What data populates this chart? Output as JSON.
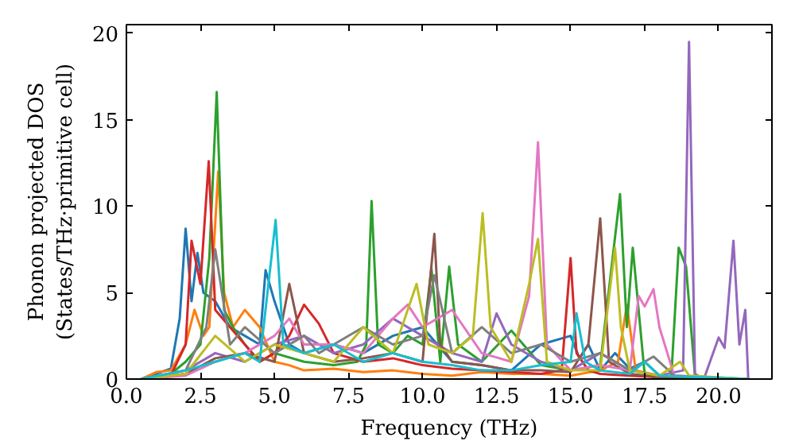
{
  "chart_data": {
    "type": "line",
    "xlabel": "Frequency (THz)",
    "ylabel": "Phonon projected DOS\n(States/THz·primitive cell)",
    "xlim": [
      0,
      21.8
    ],
    "ylim": [
      0,
      20.5
    ],
    "xticks": [
      {
        "value": 0,
        "label": "0.0"
      },
      {
        "value": 2.5,
        "label": "2.5"
      },
      {
        "value": 5,
        "label": "5.0"
      },
      {
        "value": 7.5,
        "label": "7.5"
      },
      {
        "value": 10,
        "label": "10.0"
      },
      {
        "value": 12.5,
        "label": "12.5"
      },
      {
        "value": 15,
        "label": "15.0"
      },
      {
        "value": 17.5,
        "label": "17.5"
      },
      {
        "value": 20,
        "label": "20.0"
      }
    ],
    "yticks": [
      0,
      5,
      10,
      15,
      20
    ],
    "grid": false,
    "line_style": "solid",
    "series": [
      {
        "color": "#1f77b4",
        "x": [
          0.5,
          1.0,
          1.5,
          1.8,
          2.0,
          2.2,
          2.4,
          2.6,
          3.0,
          3.5,
          4.0,
          4.5,
          4.7,
          5.0,
          5.5,
          6.0,
          7.0,
          8.0,
          9.0,
          10.0,
          10.5,
          11.0,
          12.0,
          13.0,
          14.0,
          15.0,
          15.3,
          15.6,
          16.0,
          16.5,
          17.0,
          17.5,
          18.0,
          19.0,
          21.0
        ],
        "values": [
          0,
          0.3,
          0.6,
          3.5,
          8.7,
          4.5,
          7.3,
          5.0,
          4.5,
          3.0,
          2.5,
          2.0,
          6.3,
          4.5,
          2.0,
          1.5,
          2.0,
          1.5,
          2.5,
          3.0,
          2.0,
          1.0,
          0.8,
          0.5,
          2.0,
          2.5,
          1.2,
          2.0,
          0.5,
          1.5,
          0.6,
          1.0,
          0.2,
          0,
          0
        ]
      },
      {
        "color": "#ff7f0e",
        "x": [
          0.5,
          1.0,
          1.5,
          2.0,
          2.3,
          2.6,
          2.8,
          3.1,
          3.3,
          3.6,
          4.0,
          4.5,
          5.0,
          5.5,
          6.0,
          7.0,
          8.0,
          9.0,
          10.0,
          11.0,
          12.0,
          13.0,
          14.0,
          15.0,
          16.0,
          16.6,
          16.9,
          17.2,
          18.0,
          19.0,
          21.0
        ],
        "values": [
          0,
          0.4,
          0.5,
          2.0,
          4.0,
          2.5,
          3.0,
          12.0,
          5.0,
          3.0,
          4.0,
          3.0,
          1.0,
          0.8,
          0.5,
          0.6,
          0.4,
          0.5,
          0.3,
          0.2,
          0.4,
          0.3,
          0.3,
          0.2,
          0.5,
          1.0,
          4.3,
          0.5,
          0.2,
          0.1,
          0
        ]
      },
      {
        "color": "#2ca02c",
        "x": [
          0.5,
          1.5,
          2.0,
          2.5,
          2.8,
          3.05,
          3.3,
          3.6,
          4.0,
          4.5,
          5.0,
          6.0,
          7.0,
          7.8,
          8.1,
          8.28,
          8.5,
          9.0,
          9.5,
          10.0,
          10.3,
          10.6,
          10.9,
          11.2,
          12.0,
          13.0,
          14.0,
          15.0,
          16.0,
          16.67,
          16.9,
          17.1,
          17.5,
          18.0,
          18.4,
          18.65,
          18.9,
          19.2,
          20.0,
          21.0
        ],
        "values": [
          0,
          0.3,
          1.0,
          2.0,
          7.0,
          16.6,
          4.0,
          3.0,
          2.0,
          1.0,
          1.5,
          1.0,
          0.8,
          1.0,
          2.0,
          10.3,
          2.0,
          1.5,
          2.5,
          2.0,
          6.4,
          1.0,
          6.5,
          2.0,
          1.0,
          2.8,
          0.8,
          0.5,
          0.8,
          10.7,
          3.0,
          7.6,
          0.3,
          0,
          0.1,
          7.6,
          6.5,
          0.2,
          0,
          0
        ]
      },
      {
        "color": "#d62728",
        "x": [
          0.5,
          1.5,
          2.0,
          2.2,
          2.5,
          2.78,
          3.0,
          3.5,
          4.0,
          4.5,
          5.0,
          5.5,
          6.0,
          6.5,
          7.0,
          8.0,
          9.0,
          10.0,
          11.0,
          12.0,
          13.0,
          14.0,
          14.7,
          15.0,
          15.2,
          15.6,
          16.0,
          17.0,
          18.0,
          21.0
        ],
        "values": [
          0,
          0.2,
          2.0,
          8.0,
          5.5,
          12.6,
          4.0,
          3.0,
          2.0,
          1.0,
          1.5,
          2.5,
          4.3,
          3.2,
          1.5,
          1.0,
          1.2,
          0.8,
          0.6,
          0.5,
          0.4,
          0.3,
          0.5,
          7.0,
          1.5,
          0.5,
          0.3,
          0.2,
          0.1,
          0
        ]
      },
      {
        "color": "#9467bd",
        "x": [
          0.5,
          2.0,
          3.0,
          4.0,
          5.0,
          6.0,
          7.0,
          8.0,
          9.0,
          10.0,
          11.0,
          12.0,
          12.5,
          13.0,
          14.0,
          15.0,
          16.0,
          17.0,
          18.0,
          18.8,
          19.0,
          19.2,
          19.5,
          20.0,
          20.2,
          20.5,
          20.7,
          20.9,
          21.0
        ],
        "values": [
          0,
          0.5,
          1.5,
          1.0,
          2.0,
          2.5,
          1.5,
          2.0,
          3.5,
          2.5,
          1.5,
          1.0,
          3.8,
          2.0,
          1.0,
          0.5,
          1.5,
          0.5,
          0.2,
          0.5,
          19.5,
          0.3,
          0,
          2.4,
          1.8,
          8.0,
          2.0,
          4.0,
          0
        ]
      },
      {
        "color": "#8c564b",
        "x": [
          0.5,
          2.0,
          3.0,
          4.0,
          5.0,
          5.5,
          6.0,
          7.0,
          8.0,
          9.0,
          10.0,
          10.4,
          10.6,
          11.0,
          12.0,
          13.0,
          14.0,
          15.0,
          15.6,
          16.0,
          16.3,
          17.0,
          18.0,
          21.0
        ],
        "values": [
          0,
          0.3,
          1.2,
          1.5,
          1.0,
          5.5,
          1.5,
          1.0,
          1.2,
          1.5,
          1.0,
          8.4,
          2.0,
          1.0,
          0.8,
          0.5,
          0.5,
          0.4,
          2.0,
          9.3,
          1.0,
          0.3,
          0.1,
          0
        ]
      },
      {
        "color": "#e377c2",
        "x": [
          0.5,
          2.0,
          3.0,
          4.0,
          5.0,
          5.5,
          6.0,
          7.0,
          8.0,
          9.0,
          9.5,
          10.0,
          11.0,
          12.0,
          13.0,
          13.6,
          13.9,
          14.2,
          15.0,
          16.0,
          17.0,
          17.3,
          17.5,
          17.8,
          18.0,
          18.5,
          21.0
        ],
        "values": [
          0,
          0.2,
          1.0,
          1.5,
          2.5,
          3.5,
          2.0,
          2.0,
          1.5,
          3.5,
          4.3,
          3.0,
          4.0,
          1.5,
          1.0,
          4.8,
          13.7,
          2.0,
          0.5,
          0.8,
          0.5,
          4.8,
          4.2,
          5.2,
          3.0,
          0.2,
          0
        ]
      },
      {
        "color": "#7f7f7f",
        "x": [
          0.5,
          2.0,
          2.7,
          3.0,
          3.5,
          4.0,
          5.0,
          6.0,
          6.5,
          7.0,
          8.0,
          9.0,
          10.0,
          10.4,
          11.0,
          12.0,
          13.0,
          14.0,
          15.0,
          16.0,
          17.0,
          17.8,
          18.5,
          21.0
        ],
        "values": [
          0,
          0.5,
          3.0,
          7.5,
          2.0,
          3.0,
          1.5,
          2.5,
          1.5,
          2.0,
          3.0,
          2.0,
          2.5,
          6.0,
          1.5,
          3.0,
          1.5,
          2.0,
          1.0,
          1.5,
          0.5,
          1.3,
          0.2,
          0
        ]
      },
      {
        "color": "#bcbd22",
        "x": [
          0.5,
          2.0,
          3.0,
          4.0,
          5.0,
          6.0,
          7.0,
          8.0,
          9.0,
          9.8,
          10.2,
          11.0,
          11.7,
          12.03,
          12.3,
          13.0,
          13.6,
          13.9,
          14.2,
          15.0,
          16.0,
          16.5,
          16.7,
          17.0,
          18.0,
          18.7,
          19.0,
          21.0
        ],
        "values": [
          0,
          0.3,
          2.5,
          1.0,
          2.0,
          1.5,
          1.0,
          3.0,
          1.5,
          5.5,
          2.0,
          1.5,
          2.5,
          9.6,
          3.0,
          1.0,
          5.5,
          8.1,
          1.0,
          0.5,
          0.5,
          7.6,
          3.0,
          0.5,
          0.2,
          1.0,
          0.2,
          0
        ]
      },
      {
        "color": "#17becf",
        "x": [
          0.5,
          2.0,
          3.0,
          4.0,
          4.5,
          5.04,
          5.3,
          6.0,
          7.0,
          8.0,
          9.0,
          10.0,
          11.0,
          12.0,
          13.0,
          14.0,
          15.0,
          15.2,
          15.5,
          16.0,
          17.0,
          17.5,
          18.0,
          21.0
        ],
        "values": [
          0,
          0.5,
          1.0,
          1.5,
          1.0,
          9.2,
          2.0,
          1.5,
          2.0,
          1.0,
          1.5,
          1.0,
          0.8,
          0.5,
          0.5,
          0.8,
          1.0,
          3.8,
          1.0,
          0.5,
          0.3,
          1.0,
          0.2,
          0
        ]
      }
    ]
  }
}
